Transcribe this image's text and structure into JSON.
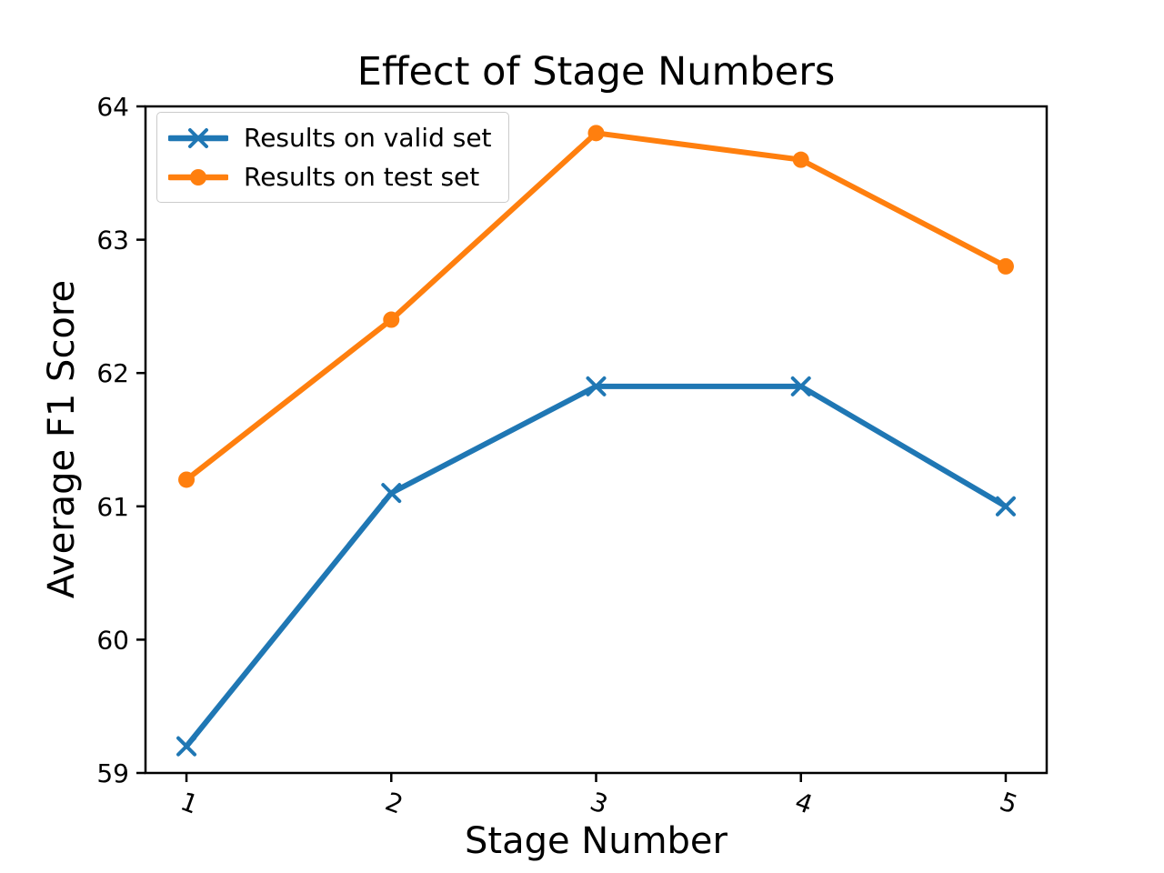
{
  "figure": {
    "background": "#ffffff",
    "text_color": "#000000"
  },
  "chart_data": {
    "type": "line",
    "title": "Effect of Stage Numbers",
    "xlabel": "Stage Number",
    "ylabel": "Average F1 Score",
    "x": [
      1,
      2,
      3,
      4,
      5
    ],
    "xtick_labels": [
      "1",
      "2",
      "3",
      "4",
      "5"
    ],
    "yticks": [
      59,
      60,
      61,
      62,
      63,
      64
    ],
    "ytick_labels": [
      "59",
      "60",
      "61",
      "62",
      "63",
      "64"
    ],
    "xlim": [
      0.8,
      5.2
    ],
    "ylim": [
      59,
      64
    ],
    "grid": false,
    "legend_position": "upper-left",
    "axis_color": "#000000",
    "xtick_label_rotation_deg": 20,
    "series": [
      {
        "name": "Results on valid set",
        "color": "#1f77b4",
        "marker": "x",
        "values": [
          59.2,
          61.1,
          61.9,
          61.9,
          61.0
        ]
      },
      {
        "name": "Results on test set",
        "color": "#ff7f0e",
        "marker": "o",
        "values": [
          61.2,
          62.4,
          63.8,
          63.6,
          62.8
        ]
      }
    ]
  }
}
